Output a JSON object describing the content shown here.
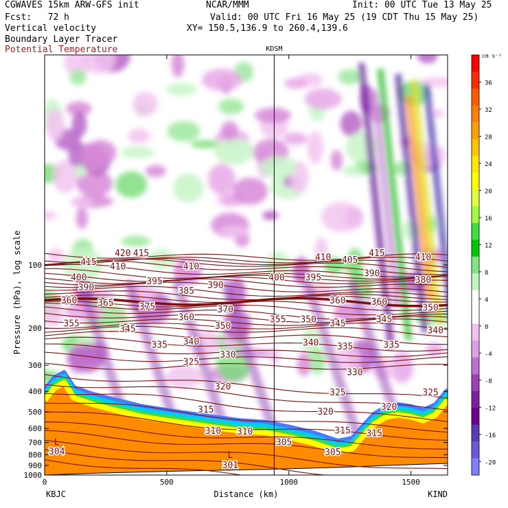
{
  "header": {
    "model_line": "CGWAVES 15km ARW-GFS init",
    "org": "NCAR/MMM",
    "init": "Init: 00 UTC Tue 13 May 25",
    "fcst": "Fcst:   72 h",
    "valid": "Valid: 00 UTC Fri 16 May 25 (19 CDT Thu 15 May 25)",
    "field1": "Vertical velocity",
    "xy": "XY= 150.5,136.9 to 260.4,139.6",
    "field2": "Boundary Layer Tracer",
    "field3": "Potential Temperature"
  },
  "colors": {
    "theta_contour": "#7a1010",
    "field3_label": "#a02020",
    "terrain_fill": "#ff8c00",
    "terrain_edge_yellow": "#ffff00"
  },
  "chart_data": {
    "type": "heatmap",
    "title": "KDSM",
    "xlabel": "Distance (km)",
    "ylabel": "Pressure (hPa), log scale",
    "x_scale": "linear",
    "y_scale": "log",
    "xlim": [
      0,
      1650
    ],
    "ylim": [
      1000,
      10
    ],
    "x_ticks": [
      0,
      500,
      1000,
      1500
    ],
    "y_ticks": [
      100,
      200,
      300,
      400,
      500,
      600,
      700,
      800,
      900,
      1000
    ],
    "endpoints": {
      "left": "KBJC",
      "right": "KIND"
    },
    "marker_station": {
      "name": "KDSM",
      "x": 940
    },
    "colorbar": {
      "unit": "cm s⁻¹",
      "ticks": [
        36,
        32,
        28,
        24,
        20,
        16,
        12,
        8,
        4,
        0,
        -4,
        -8,
        -12,
        -16,
        -20
      ],
      "colors": [
        "#ff0000",
        "#ff2a00",
        "#ff5a00",
        "#ff7d00",
        "#ffa000",
        "#ffc400",
        "#ffe800",
        "#ffff00",
        "#dfff40",
        "#9fff3f",
        "#3fdf3f",
        "#00c800",
        "#7fe67f",
        "#bff5bf",
        "#ffffff",
        "#ffffff",
        "#f0c0f0",
        "#e0a0e8",
        "#c070d0",
        "#a040b8",
        "#8020a0",
        "#700090",
        "#5b3ab8",
        "#6a5ad8",
        "#7f7fff"
      ]
    },
    "theta_contours": [
      {
        "value": 420,
        "x": 320,
        "p": 88
      },
      {
        "value": 415,
        "x": 180,
        "p": 97
      },
      {
        "value": 415,
        "x": 395,
        "p": 88
      },
      {
        "value": 415,
        "x": 1360,
        "p": 88
      },
      {
        "value": 410,
        "x": 300,
        "p": 102
      },
      {
        "value": 410,
        "x": 600,
        "p": 102
      },
      {
        "value": 410,
        "x": 1140,
        "p": 92
      },
      {
        "value": 410,
        "x": 1550,
        "p": 92
      },
      {
        "value": 405,
        "x": 1250,
        "p": 95
      },
      {
        "value": 400,
        "x": 140,
        "p": 115
      },
      {
        "value": 400,
        "x": 950,
        "p": 115
      },
      {
        "value": 395,
        "x": 450,
        "p": 120
      },
      {
        "value": 395,
        "x": 1100,
        "p": 115
      },
      {
        "value": 390,
        "x": 170,
        "p": 128
      },
      {
        "value": 390,
        "x": 700,
        "p": 125
      },
      {
        "value": 390,
        "x": 1340,
        "p": 110
      },
      {
        "value": 385,
        "x": 580,
        "p": 133
      },
      {
        "value": 380,
        "x": 1550,
        "p": 118
      },
      {
        "value": 375,
        "x": 420,
        "p": 158
      },
      {
        "value": 370,
        "x": 740,
        "p": 163
      },
      {
        "value": 365,
        "x": 250,
        "p": 152
      },
      {
        "value": 360,
        "x": 100,
        "p": 148
      },
      {
        "value": 360,
        "x": 580,
        "p": 178
      },
      {
        "value": 360,
        "x": 1200,
        "p": 148
      },
      {
        "value": 360,
        "x": 1370,
        "p": 150
      },
      {
        "value": 355,
        "x": 110,
        "p": 190
      },
      {
        "value": 355,
        "x": 955,
        "p": 182
      },
      {
        "value": 350,
        "x": 1580,
        "p": 160
      },
      {
        "value": 350,
        "x": 730,
        "p": 195
      },
      {
        "value": 350,
        "x": 1080,
        "p": 182
      },
      {
        "value": 345,
        "x": 340,
        "p": 202
      },
      {
        "value": 345,
        "x": 1200,
        "p": 190
      },
      {
        "value": 345,
        "x": 1390,
        "p": 182
      },
      {
        "value": 340,
        "x": 600,
        "p": 232
      },
      {
        "value": 340,
        "x": 1090,
        "p": 235
      },
      {
        "value": 340,
        "x": 1600,
        "p": 205
      },
      {
        "value": 335,
        "x": 470,
        "p": 240
      },
      {
        "value": 335,
        "x": 1230,
        "p": 245
      },
      {
        "value": 335,
        "x": 1420,
        "p": 240
      },
      {
        "value": 330,
        "x": 750,
        "p": 268
      },
      {
        "value": 330,
        "x": 1270,
        "p": 325
      },
      {
        "value": 325,
        "x": 600,
        "p": 290
      },
      {
        "value": 325,
        "x": 1200,
        "p": 405
      },
      {
        "value": 325,
        "x": 1580,
        "p": 405
      },
      {
        "value": 320,
        "x": 730,
        "p": 380
      },
      {
        "value": 320,
        "x": 1150,
        "p": 500
      },
      {
        "value": 320,
        "x": 1410,
        "p": 475
      },
      {
        "value": 315,
        "x": 660,
        "p": 490
      },
      {
        "value": 315,
        "x": 1220,
        "p": 615
      },
      {
        "value": 315,
        "x": 1350,
        "p": 635
      },
      {
        "value": 310,
        "x": 690,
        "p": 618
      },
      {
        "value": 310,
        "x": 820,
        "p": 622
      },
      {
        "value": 305,
        "x": 980,
        "p": 700
      },
      {
        "value": 305,
        "x": 1180,
        "p": 780
      },
      {
        "value": 304,
        "x": 50,
        "p": 775
      },
      {
        "value": 301,
        "x": 760,
        "p": 900
      }
    ],
    "low_labels": [
      {
        "label": "L",
        "x": 50,
        "p": 700
      },
      {
        "label": "L",
        "x": 760,
        "p": 805
      }
    ]
  }
}
